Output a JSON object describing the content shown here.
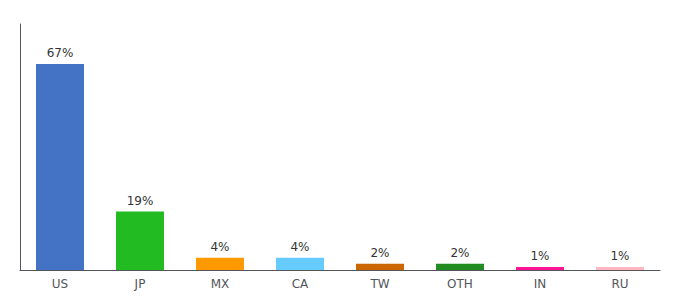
{
  "chart_data": {
    "type": "bar",
    "categories": [
      "US",
      "JP",
      "MX",
      "CA",
      "TW",
      "OTH",
      "IN",
      "RU"
    ],
    "values": [
      67,
      19,
      4,
      4,
      2,
      2,
      1,
      1
    ],
    "value_labels": [
      "67%",
      "19%",
      "4%",
      "4%",
      "2%",
      "2%",
      "1%",
      "1%"
    ],
    "colors": [
      "#4472c4",
      "#22bb22",
      "#ff9900",
      "#66ccff",
      "#cc6600",
      "#228b22",
      "#ff1493",
      "#ffb6c1"
    ],
    "ylim": [
      0,
      80
    ],
    "data_labels": true,
    "tick_labels": "x",
    "grid": false
  }
}
